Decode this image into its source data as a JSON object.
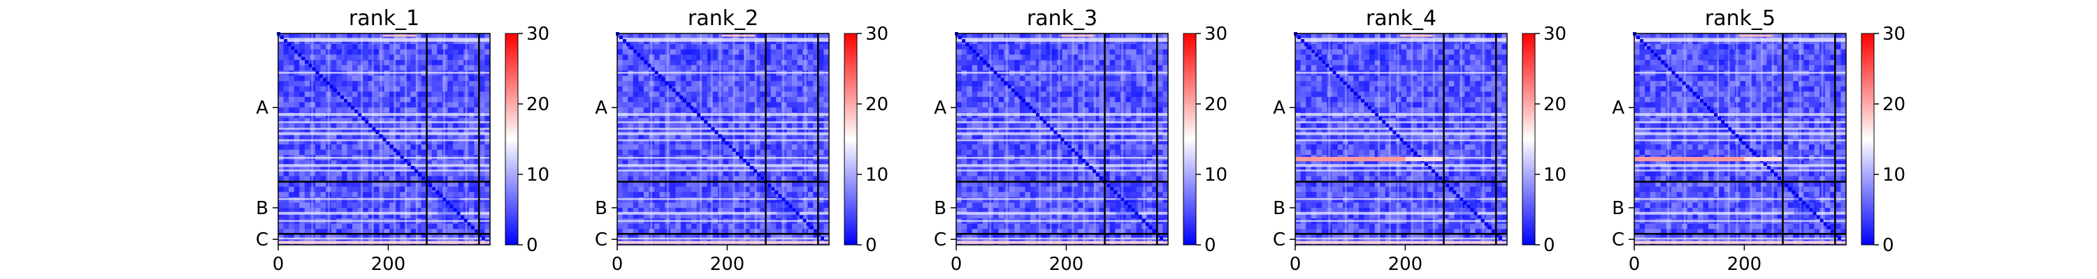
{
  "chart_data": {
    "type": "heatmap",
    "colormap": "bwr",
    "color_range": [
      0,
      30
    ],
    "colorbar_ticks": [
      "0",
      "10",
      "20",
      "30"
    ],
    "x_ticks": [
      {
        "value": 0,
        "label": "0"
      },
      {
        "value": 200,
        "label": "200"
      }
    ],
    "x_range": [
      0,
      385
    ],
    "y_range": [
      0,
      385
    ],
    "segments": [
      {
        "name": "A",
        "start": 0,
        "end": 270
      },
      {
        "name": "B",
        "start": 270,
        "end": 365
      },
      {
        "name": "C",
        "start": 365,
        "end": 385
      }
    ],
    "panels": [
      {
        "title": "rank_1",
        "hot_band": false
      },
      {
        "title": "rank_2",
        "hot_band": false
      },
      {
        "title": "rank_3",
        "hot_band": false
      },
      {
        "title": "rank_4",
        "hot_band": true
      },
      {
        "title": "rank_5",
        "hot_band": true
      }
    ]
  }
}
